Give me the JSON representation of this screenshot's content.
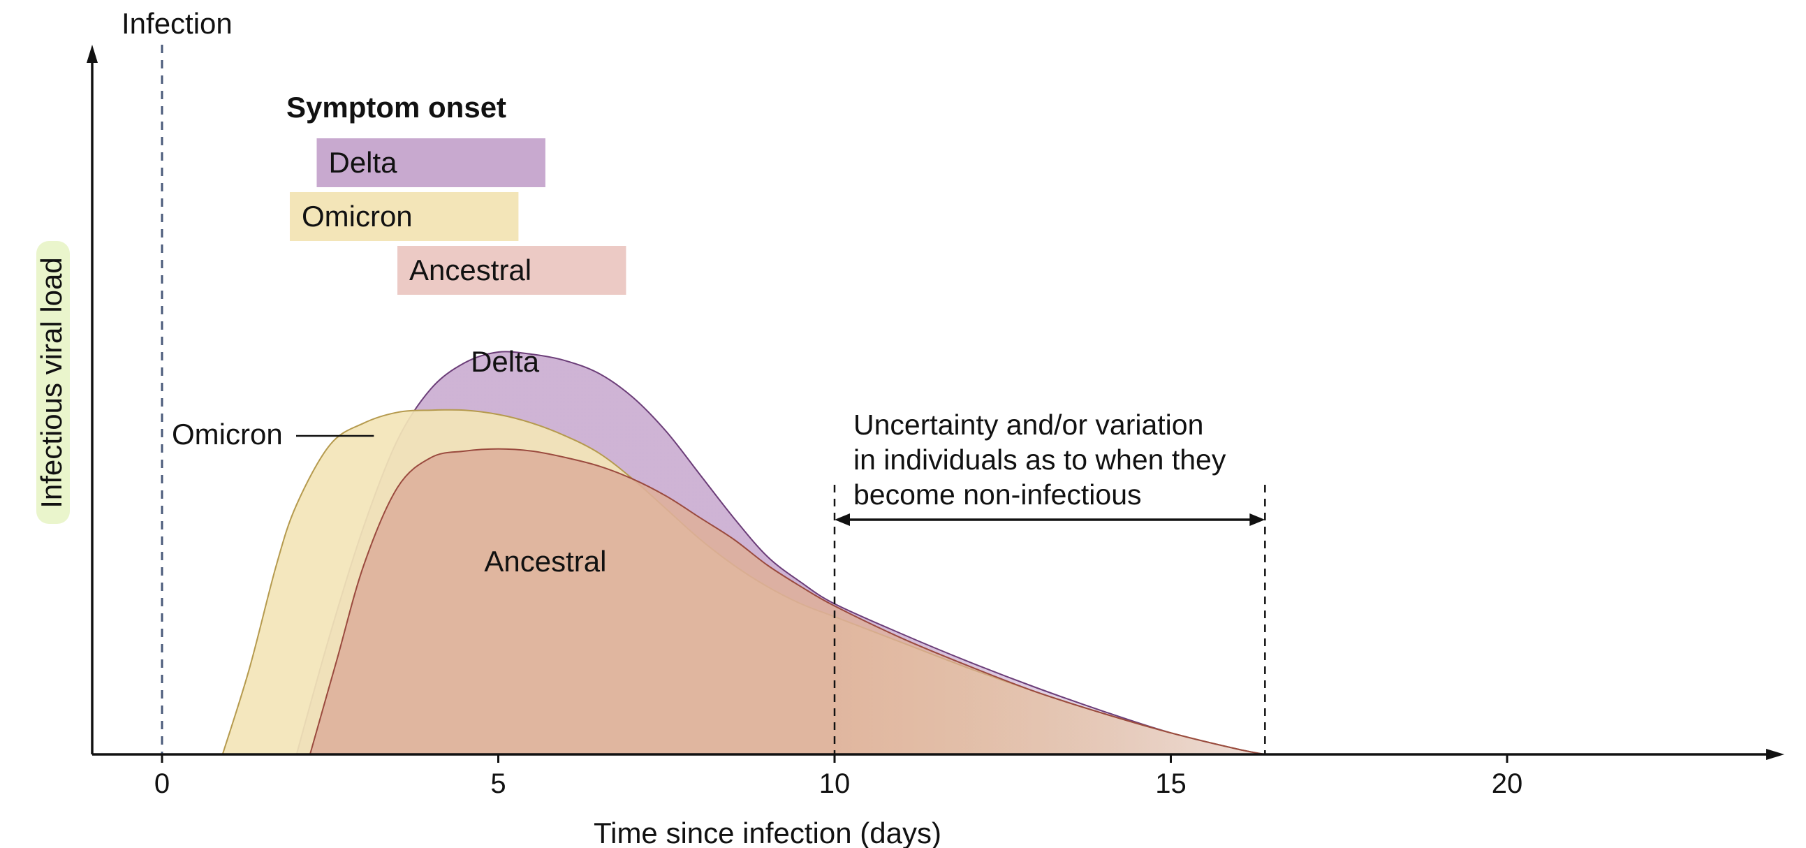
{
  "chart_data": {
    "type": "area",
    "title": "",
    "xlabel": "Time since infection (days)",
    "ylabel": "Infectious viral load",
    "xlim": [
      -1,
      24
    ],
    "ylim": [
      0,
      1
    ],
    "x_ticks": [
      0,
      5,
      10,
      15,
      20
    ],
    "y_ticks": [],
    "grid": false,
    "infection_marker": {
      "x": 0,
      "label": "Infection"
    },
    "symptom_onset": {
      "title": "Symptom onset",
      "ranges": [
        {
          "name": "Delta",
          "start": 2.3,
          "end": 5.7
        },
        {
          "name": "Omicron",
          "start": 1.9,
          "end": 5.3
        },
        {
          "name": "Ancestral",
          "start": 3.5,
          "end": 6.9
        }
      ]
    },
    "series": [
      {
        "name": "Delta",
        "label": "Delta",
        "x": [
          2.0,
          2.5,
          3.0,
          3.5,
          4.0,
          4.5,
          5.0,
          5.5,
          6.0,
          6.5,
          7.0,
          7.5,
          8.0,
          8.5,
          9.0,
          9.5,
          10.0,
          11.0,
          12.0,
          13.0,
          14.0,
          15.0,
          16.0,
          16.4
        ],
        "values": [
          0.0,
          0.28,
          0.53,
          0.73,
          0.85,
          0.91,
          0.935,
          0.93,
          0.915,
          0.885,
          0.83,
          0.75,
          0.65,
          0.55,
          0.46,
          0.4,
          0.35,
          0.28,
          0.215,
          0.155,
          0.1,
          0.05,
          0.012,
          0.0
        ]
      },
      {
        "name": "Omicron",
        "label": "Omicron",
        "x": [
          0.9,
          1.3,
          1.7,
          2.0,
          2.5,
          3.0,
          3.5,
          4.0,
          4.5,
          5.0,
          5.5,
          6.0,
          6.5,
          7.0,
          7.5,
          8.0,
          8.5,
          9.0,
          9.5,
          10.0,
          11.0,
          12.0,
          13.0,
          14.0,
          15.0,
          16.0,
          16.4
        ],
        "values": [
          0.0,
          0.2,
          0.44,
          0.58,
          0.72,
          0.77,
          0.795,
          0.8,
          0.8,
          0.79,
          0.77,
          0.74,
          0.7,
          0.64,
          0.57,
          0.5,
          0.44,
          0.39,
          0.35,
          0.32,
          0.26,
          0.2,
          0.145,
          0.095,
          0.05,
          0.012,
          0.0
        ]
      },
      {
        "name": "Ancestral",
        "label": "Ancestral",
        "x": [
          2.2,
          2.6,
          3.0,
          3.5,
          4.0,
          4.5,
          5.0,
          5.5,
          6.0,
          6.5,
          7.0,
          7.5,
          8.0,
          8.5,
          9.0,
          9.5,
          10.0,
          11.0,
          12.0,
          13.0,
          14.0,
          15.0,
          16.0,
          16.4
        ],
        "values": [
          0.0,
          0.22,
          0.44,
          0.62,
          0.69,
          0.705,
          0.71,
          0.705,
          0.69,
          0.67,
          0.64,
          0.6,
          0.55,
          0.5,
          0.44,
          0.39,
          0.345,
          0.27,
          0.205,
          0.145,
          0.095,
          0.05,
          0.012,
          0.0
        ]
      }
    ],
    "callout": {
      "label": "Omicron"
    },
    "uncertainty": {
      "start": 10,
      "end": 16.4,
      "lines": [
        "Uncertainty and/or variation",
        "in individuals as to when they",
        "become non-infectious"
      ]
    }
  },
  "colors": {
    "delta_fill": "#c8a9cf",
    "delta_stroke": "#6b3d78",
    "omicron_fill": "#f3e5b8",
    "omicron_stroke": "#b59a4e",
    "ancestral_fill": "#deb09b",
    "ancestral_stroke": "#9a4a3e",
    "delta_bar": "#c8a9cf",
    "omicron_bar": "#f3e5b8",
    "ancestral_bar": "#eccac5",
    "ylabel_highlight": "#eaf5cc",
    "infection_line": "#4a5a7a",
    "axis": "#111111"
  }
}
